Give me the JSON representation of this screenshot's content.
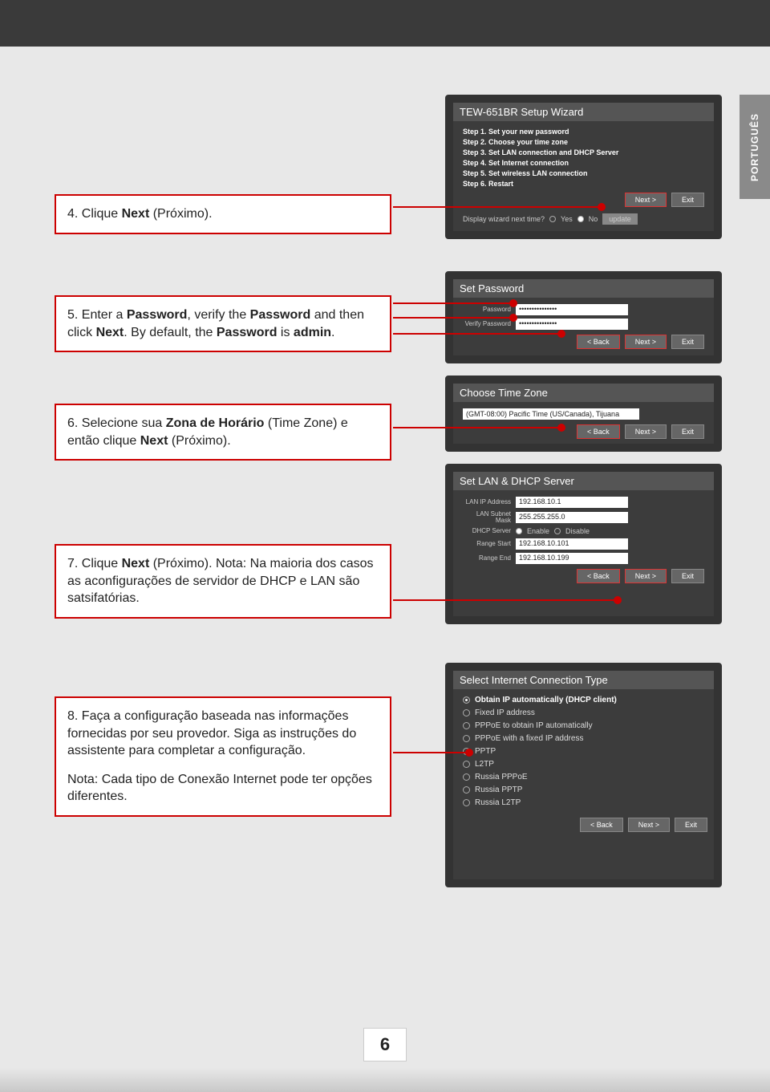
{
  "lang_tab": "PORTUGUÊS",
  "page_number": "6",
  "colors": {
    "accent": "#c00",
    "frame": "#333",
    "panel": "#3c3c3c",
    "bg": "#e8e8e8"
  },
  "steps": {
    "s4": {
      "prefix": "4. Clique ",
      "bold": "Next",
      "suffix": " (Próximo)."
    },
    "s5": {
      "prefix": "5. Enter a ",
      "b1": "Password",
      "mid1": ", verify the ",
      "b2": "Password",
      "mid2": " and then click ",
      "b3": "Next",
      "mid3": ". By default, the ",
      "b4": "Password",
      "suffix": " is ",
      "b5": "admin",
      "end": "."
    },
    "s6": {
      "prefix": "6. Selecione sua ",
      "b1": "Zona de Horário",
      "mid1": " (Time Zone) e então clique ",
      "b2": "Next",
      "suffix": " (Próximo)."
    },
    "s7": {
      "prefix": "7. Clique ",
      "b1": "Next",
      "suffix": " (Próximo). Nota: Na maioria dos casos as aconfigurações de servidor de DHCP e LAN são satsifatórias."
    },
    "s8": {
      "prefix": "8. Faça a configuração baseada nas informações fornecidas por seu provedor. Siga as instruções do assistente para completar a configuração.",
      "note": "Nota: Cada tipo de Conexão Internet pode ter opções diferentes."
    }
  },
  "wizard1": {
    "title": "TEW-651BR Setup Wizard",
    "steps": [
      "Step 1. Set your new password",
      "Step 2. Choose your time zone",
      "Step 3. Set LAN connection and DHCP Server",
      "Step 4. Set Internet connection",
      "Step 5. Set wireless LAN connection",
      "Step 6. Restart"
    ],
    "next": "Next >",
    "exit": "Exit",
    "display_q": "Display wizard next time?",
    "yes": "Yes",
    "no": "No",
    "update": "update"
  },
  "wizard2": {
    "title": "Set Password",
    "pw_label": "Password",
    "vpw_label": "Verify Password",
    "dots": "•••••••••••••••",
    "back": "< Back",
    "next": "Next >",
    "exit": "Exit"
  },
  "wizard3": {
    "title": "Choose Time Zone",
    "tz": "(GMT-08:00) Pacific Time (US/Canada), Tijuana",
    "back": "< Back",
    "next": "Next >",
    "exit": "Exit"
  },
  "wizard4": {
    "title": "Set LAN & DHCP Server",
    "rows": [
      {
        "label": "LAN IP Address",
        "value": "192.168.10.1"
      },
      {
        "label": "LAN Subnet Mask",
        "value": "255.255.255.0"
      }
    ],
    "dhcp_label": "DHCP Server",
    "enable": "Enable",
    "disable": "Disable",
    "range_start_label": "Range Start",
    "range_start": "192.168.10.101",
    "range_end_label": "Range End",
    "range_end": "192.168.10.199",
    "back": "< Back",
    "next": "Next >",
    "exit": "Exit"
  },
  "wizard5": {
    "title": "Select Internet Connection Type",
    "options": [
      {
        "label": "Obtain IP automatically (DHCP client)",
        "selected": true
      },
      {
        "label": "Fixed IP address",
        "selected": false
      },
      {
        "label": "PPPoE to obtain IP automatically",
        "selected": false
      },
      {
        "label": "PPPoE with a fixed IP address",
        "selected": false
      },
      {
        "label": "PPTP",
        "selected": false
      },
      {
        "label": "L2TP",
        "selected": false
      },
      {
        "label": "Russia PPPoE",
        "selected": false
      },
      {
        "label": "Russia PPTP",
        "selected": false
      },
      {
        "label": "Russia L2TP",
        "selected": false
      }
    ],
    "back": "< Back",
    "next": "Next >",
    "exit": "Exit"
  }
}
